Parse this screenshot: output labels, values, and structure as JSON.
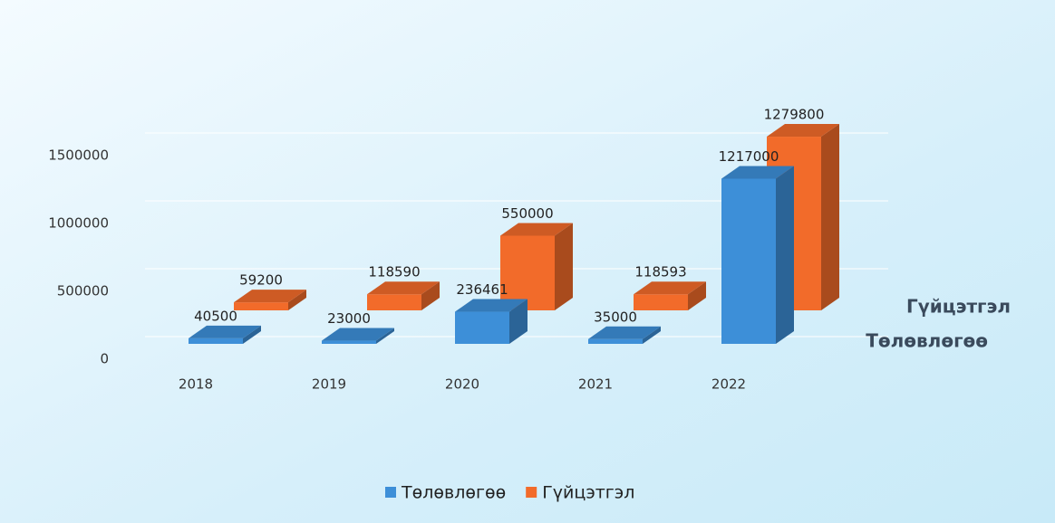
{
  "chart_data": {
    "type": "bar",
    "categories": [
      "2018",
      "2019",
      "2020",
      "2021",
      "2022"
    ],
    "series": [
      {
        "name": "Төлөвлөгөө",
        "color": "#3d8fd8",
        "values": [
          40500,
          23000,
          236461,
          35000,
          1217000
        ]
      },
      {
        "name": "Гүйцэтгэл",
        "color": "#f26b2a",
        "values": [
          59200,
          118590,
          550000,
          118593,
          1279800
        ]
      }
    ],
    "ylim": [
      0,
      2000000
    ],
    "yticks": [
      0,
      500000,
      1000000,
      1500000
    ],
    "grid": true
  }
}
